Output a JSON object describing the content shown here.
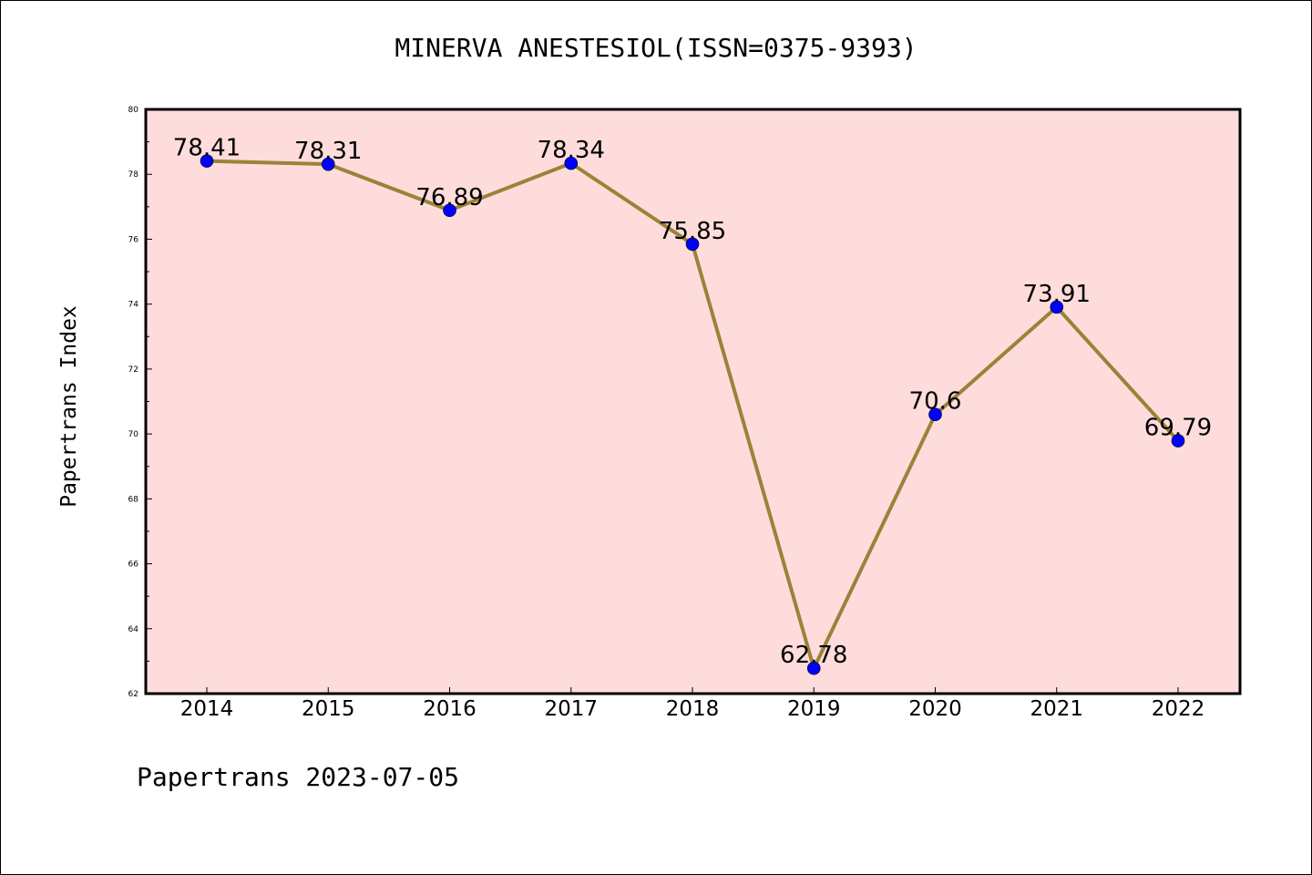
{
  "chart_data": {
    "type": "line",
    "title": "MINERVA ANESTESIOL(ISSN=0375-9393)",
    "xlabel": "",
    "ylabel": "Papertrans Index",
    "footer": "Papertrans 2023-07-05",
    "categories": [
      "2014",
      "2015",
      "2016",
      "2017",
      "2018",
      "2019",
      "2020",
      "2021",
      "2022"
    ],
    "values": [
      78.41,
      78.31,
      76.89,
      78.34,
      75.85,
      62.78,
      70.6,
      73.91,
      69.79
    ],
    "data_labels": [
      "78.41",
      "78.31",
      "76.89",
      "78.34",
      "75.85",
      "62.78",
      "70.6",
      "73.91",
      "69.79"
    ],
    "ylim": [
      62,
      80
    ],
    "yticks": [
      62,
      64,
      66,
      68,
      70,
      72,
      74,
      76,
      78,
      80
    ],
    "grid": false,
    "colors": {
      "plot_background": "#ffdcdc",
      "line": "#9a8338",
      "marker": "#0000ff"
    }
  }
}
